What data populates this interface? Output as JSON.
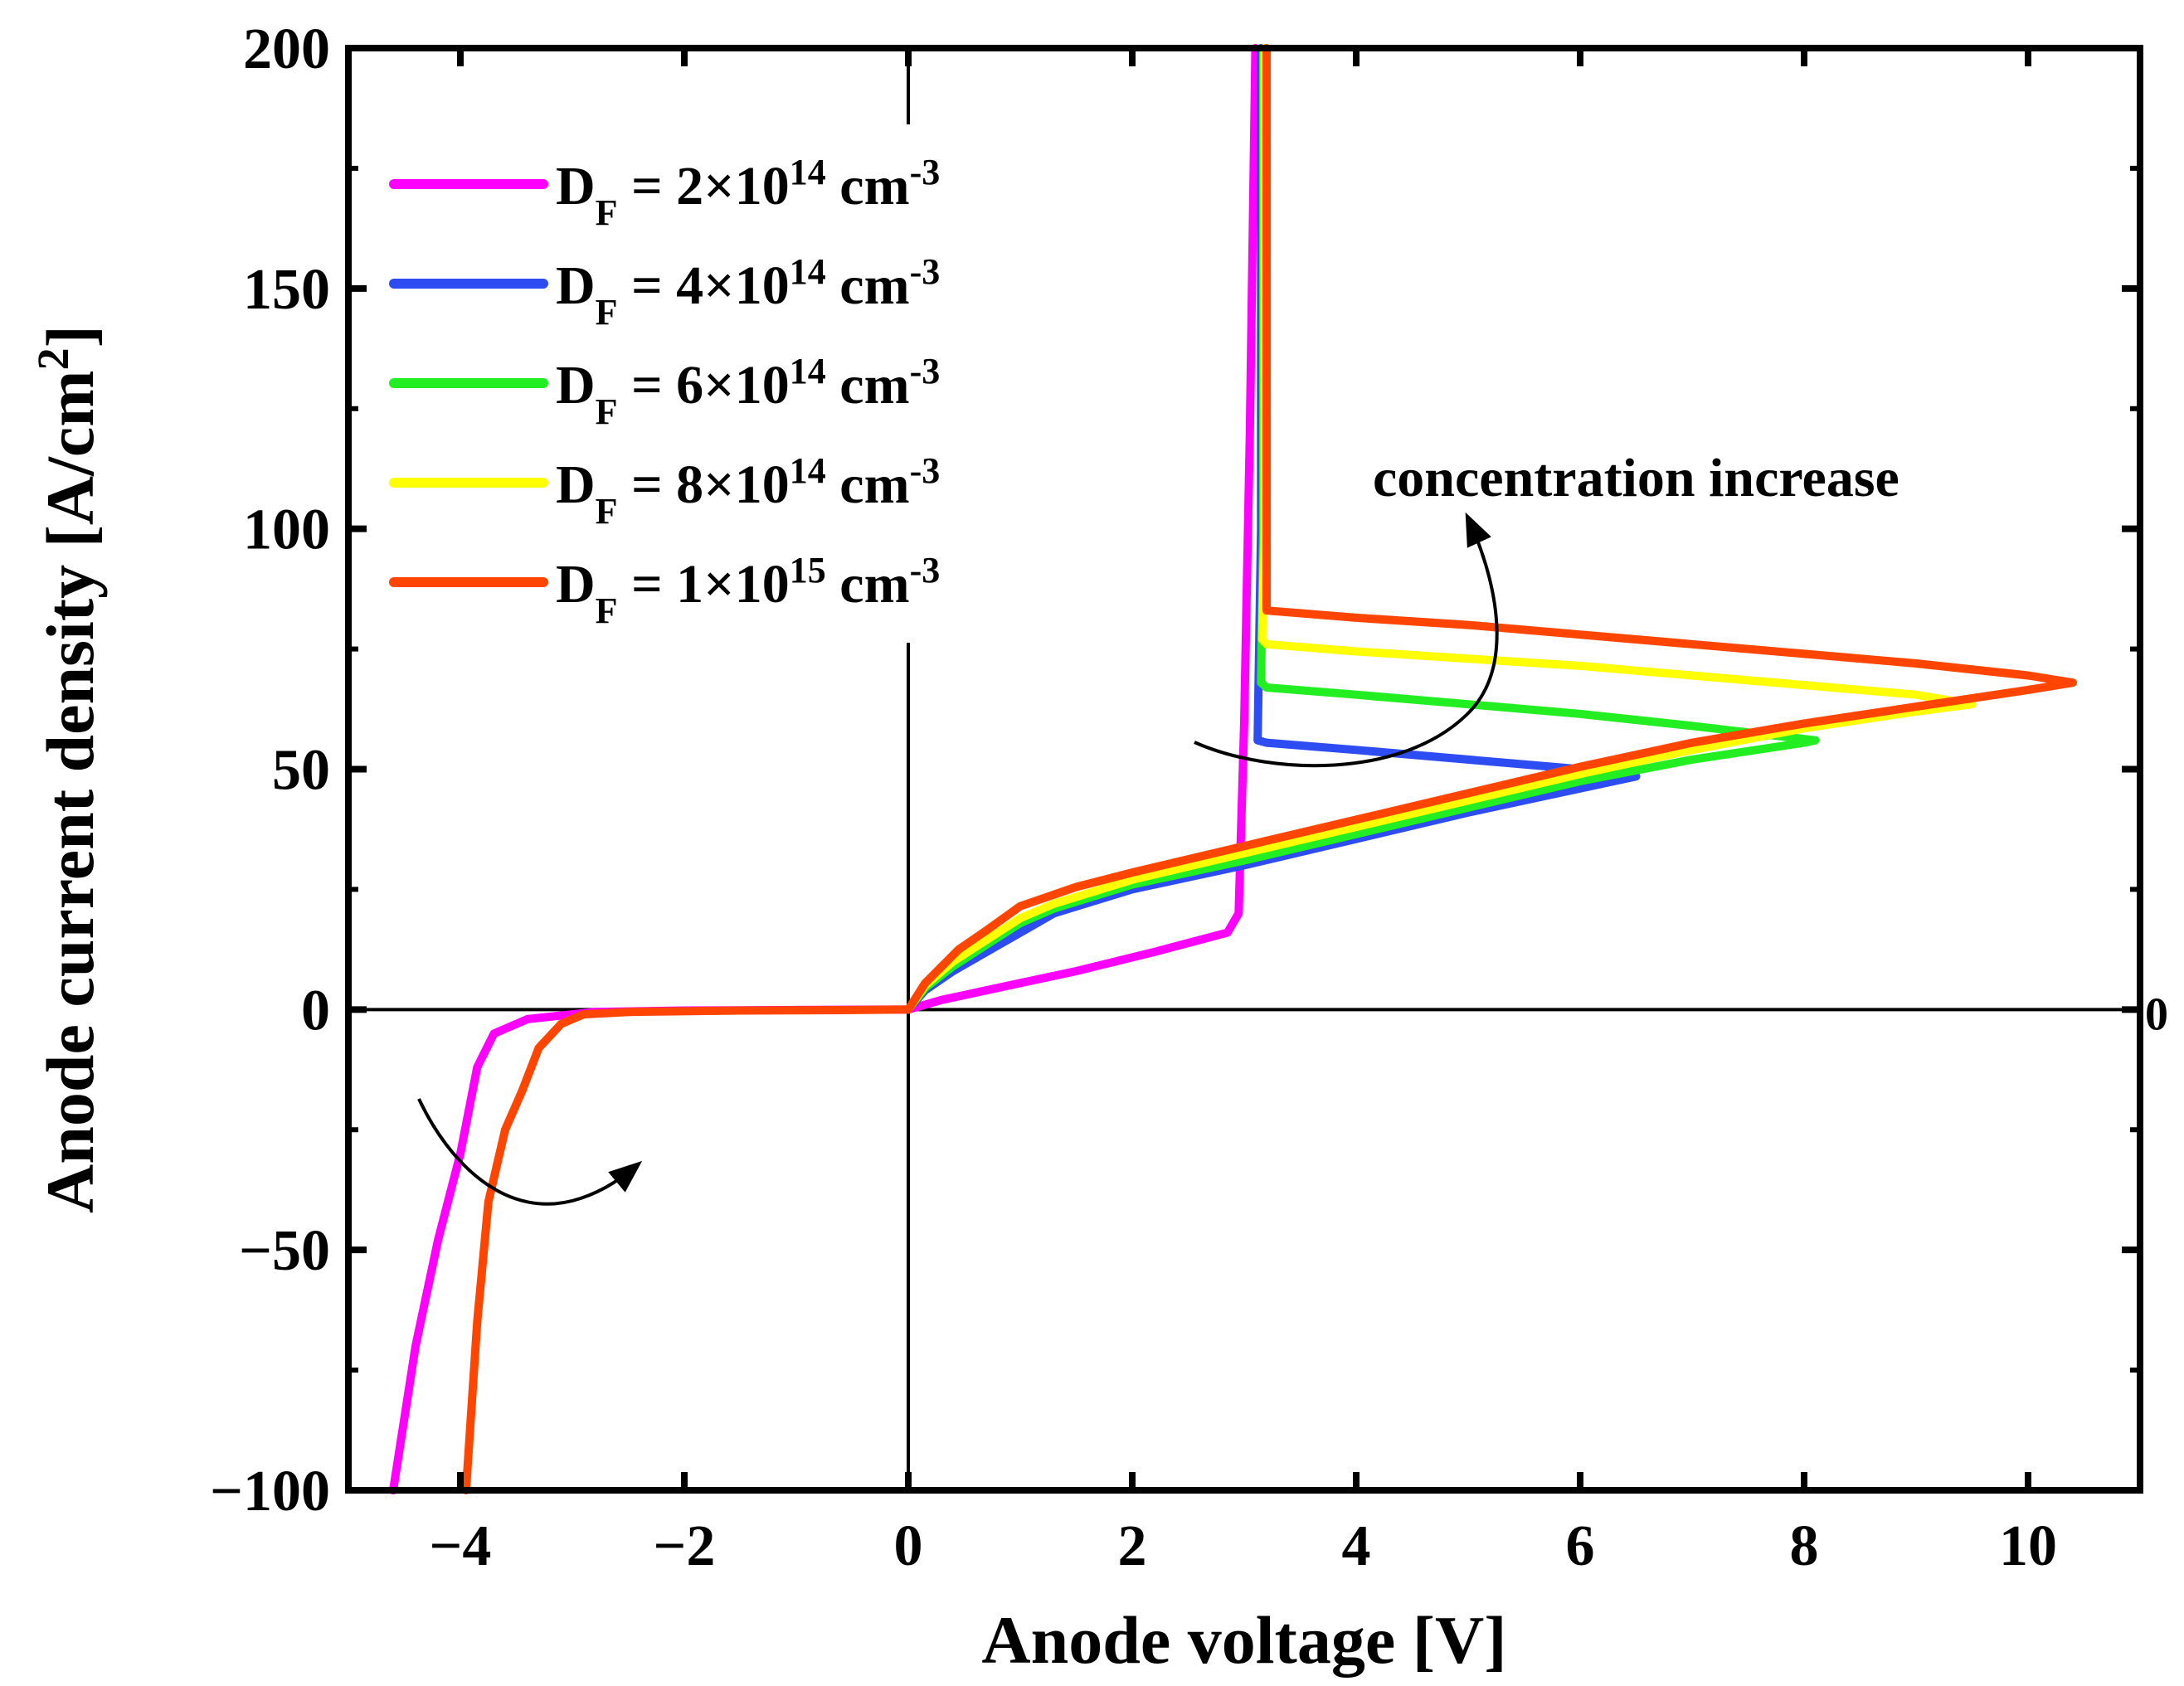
{
  "chart_data": {
    "type": "line",
    "title": "",
    "xlabel": "Anode voltage [V]",
    "ylabel": "Anode current density [A/cm",
    "ylabel_sup": "2",
    "ylabel_close": "]",
    "xlim": [
      -5,
      11
    ],
    "ylim": [
      -100,
      200
    ],
    "x_ticks": [
      -4,
      -2,
      0,
      2,
      4,
      6,
      8,
      10
    ],
    "x_tick_labels": [
      "−4",
      "−2",
      "0",
      "2",
      "4",
      "6",
      "8",
      "10"
    ],
    "y_ticks": [
      -100,
      -50,
      0,
      50,
      100,
      150,
      200
    ],
    "y_tick_labels": [
      "−100",
      "−50",
      "0",
      "50",
      "100",
      "150",
      "200"
    ],
    "right_axis_label": "0",
    "legend_position": "top-left",
    "annotation": "concentration increase",
    "series": [
      {
        "name": "D_F = 2×10^14 cm^-3",
        "label_prefix": "D",
        "label_sub": "F",
        "label_mid": " = 2×10",
        "label_exp": "14",
        "label_unit": " cm",
        "label_unit_exp": "-3",
        "color": "#ff00ff",
        "points": [
          [
            -4.6,
            -100
          ],
          [
            -4.4,
            -70
          ],
          [
            -4.2,
            -48
          ],
          [
            -4.0,
            -30
          ],
          [
            -3.85,
            -12
          ],
          [
            -3.7,
            -5
          ],
          [
            -3.4,
            -2
          ],
          [
            -2.8,
            -0.5
          ],
          [
            -2.0,
            -0.2
          ],
          [
            -1.0,
            -0.1
          ],
          [
            0.0,
            0
          ],
          [
            0.3,
            2
          ],
          [
            0.8,
            4.5
          ],
          [
            1.5,
            8
          ],
          [
            2.2,
            12
          ],
          [
            2.85,
            16
          ],
          [
            2.95,
            20
          ],
          [
            3.0,
            60
          ],
          [
            3.05,
            120
          ],
          [
            3.1,
            200
          ]
        ]
      },
      {
        "name": "D_F = 4×10^14 cm^-3",
        "label_prefix": "D",
        "label_sub": "F",
        "label_mid": " = 4×10",
        "label_exp": "14",
        "label_unit": " cm",
        "label_unit_exp": "-3",
        "color": "#2d4cf2",
        "points": [
          [
            0.0,
            0
          ],
          [
            0.15,
            4
          ],
          [
            0.4,
            8
          ],
          [
            0.7,
            12
          ],
          [
            1.0,
            16
          ],
          [
            1.3,
            20
          ],
          [
            2.0,
            25
          ],
          [
            3.0,
            30
          ],
          [
            4.0,
            35.5
          ],
          [
            5.0,
            41
          ],
          [
            6.0,
            46
          ],
          [
            6.5,
            48.5
          ],
          [
            6.0,
            50
          ],
          [
            5.0,
            52
          ],
          [
            4.0,
            54
          ],
          [
            3.2,
            55.5
          ],
          [
            3.12,
            56
          ],
          [
            3.15,
            100
          ],
          [
            3.15,
            200
          ]
        ]
      },
      {
        "name": "D_F = 6×10^14 cm^-3",
        "label_prefix": "D",
        "label_sub": "F",
        "label_mid": " = 6×10",
        "label_exp": "14",
        "label_unit": " cm",
        "label_unit_exp": "-3",
        "color": "#22ee22",
        "points": [
          [
            0.0,
            0
          ],
          [
            0.15,
            4.5
          ],
          [
            0.4,
            9
          ],
          [
            0.7,
            13.5
          ],
          [
            1.0,
            18
          ],
          [
            1.3,
            21
          ],
          [
            2.0,
            26
          ],
          [
            3.0,
            31
          ],
          [
            4.0,
            36.5
          ],
          [
            5.0,
            42
          ],
          [
            6.0,
            47.5
          ],
          [
            7.0,
            52
          ],
          [
            8.0,
            55.5
          ],
          [
            8.1,
            56
          ],
          [
            7.0,
            59
          ],
          [
            6.0,
            61.5
          ],
          [
            5.0,
            63.5
          ],
          [
            4.0,
            65.5
          ],
          [
            3.2,
            67
          ],
          [
            3.15,
            68
          ],
          [
            3.17,
            100
          ],
          [
            3.17,
            200
          ]
        ]
      },
      {
        "name": "D_F = 8×10^14 cm^-3",
        "label_prefix": "D",
        "label_sub": "F",
        "label_mid": " = 8×10",
        "label_exp": "14",
        "label_unit": " cm",
        "label_unit_exp": "-3",
        "color": "#ffff00",
        "points": [
          [
            0.0,
            0
          ],
          [
            0.15,
            5
          ],
          [
            0.4,
            10
          ],
          [
            0.7,
            14.5
          ],
          [
            1.0,
            19
          ],
          [
            1.3,
            22
          ],
          [
            2.0,
            27
          ],
          [
            3.0,
            32.5
          ],
          [
            4.0,
            38
          ],
          [
            5.0,
            43.5
          ],
          [
            6.0,
            49
          ],
          [
            7.0,
            54
          ],
          [
            8.0,
            58.5
          ],
          [
            9.0,
            62
          ],
          [
            9.5,
            63.5
          ],
          [
            9.0,
            65.5
          ],
          [
            8.0,
            67.5
          ],
          [
            7.0,
            69.5
          ],
          [
            6.0,
            71.5
          ],
          [
            5.0,
            73
          ],
          [
            4.0,
            74.5
          ],
          [
            3.2,
            76
          ],
          [
            3.16,
            77
          ],
          [
            3.18,
            100
          ],
          [
            3.18,
            200
          ]
        ]
      },
      {
        "name": "D_F = 1×10^15 cm^-3",
        "label_prefix": "D",
        "label_sub": "F",
        "label_mid": " = 1×10",
        "label_exp": "15",
        "label_unit": " cm",
        "label_unit_exp": "-3",
        "color": "#ff4500",
        "points": [
          [
            -3.95,
            -100
          ],
          [
            -3.85,
            -65
          ],
          [
            -3.75,
            -40
          ],
          [
            -3.6,
            -25
          ],
          [
            -3.45,
            -17
          ],
          [
            -3.3,
            -8
          ],
          [
            -3.1,
            -3
          ],
          [
            -2.9,
            -1
          ],
          [
            -2.5,
            -0.5
          ],
          [
            -1.5,
            -0.2
          ],
          [
            -0.5,
            -0.1
          ],
          [
            0.0,
            0
          ],
          [
            0.15,
            5.5
          ],
          [
            0.45,
            12.5
          ],
          [
            0.7,
            16.5
          ],
          [
            1.0,
            21.5
          ],
          [
            1.5,
            25.5
          ],
          [
            2.0,
            28.5
          ],
          [
            3.0,
            34
          ],
          [
            4.0,
            39.5
          ],
          [
            5.0,
            45
          ],
          [
            6.0,
            50.5
          ],
          [
            7.0,
            55.5
          ],
          [
            8.0,
            59.5
          ],
          [
            9.0,
            63
          ],
          [
            10.0,
            66.5
          ],
          [
            10.4,
            68
          ],
          [
            10.0,
            69.5
          ],
          [
            9.0,
            72
          ],
          [
            8.0,
            74
          ],
          [
            7.0,
            76
          ],
          [
            6.0,
            78
          ],
          [
            5.0,
            80
          ],
          [
            4.0,
            81.5
          ],
          [
            3.2,
            83
          ],
          [
            3.2,
            100
          ],
          [
            3.2,
            200
          ]
        ]
      }
    ]
  }
}
